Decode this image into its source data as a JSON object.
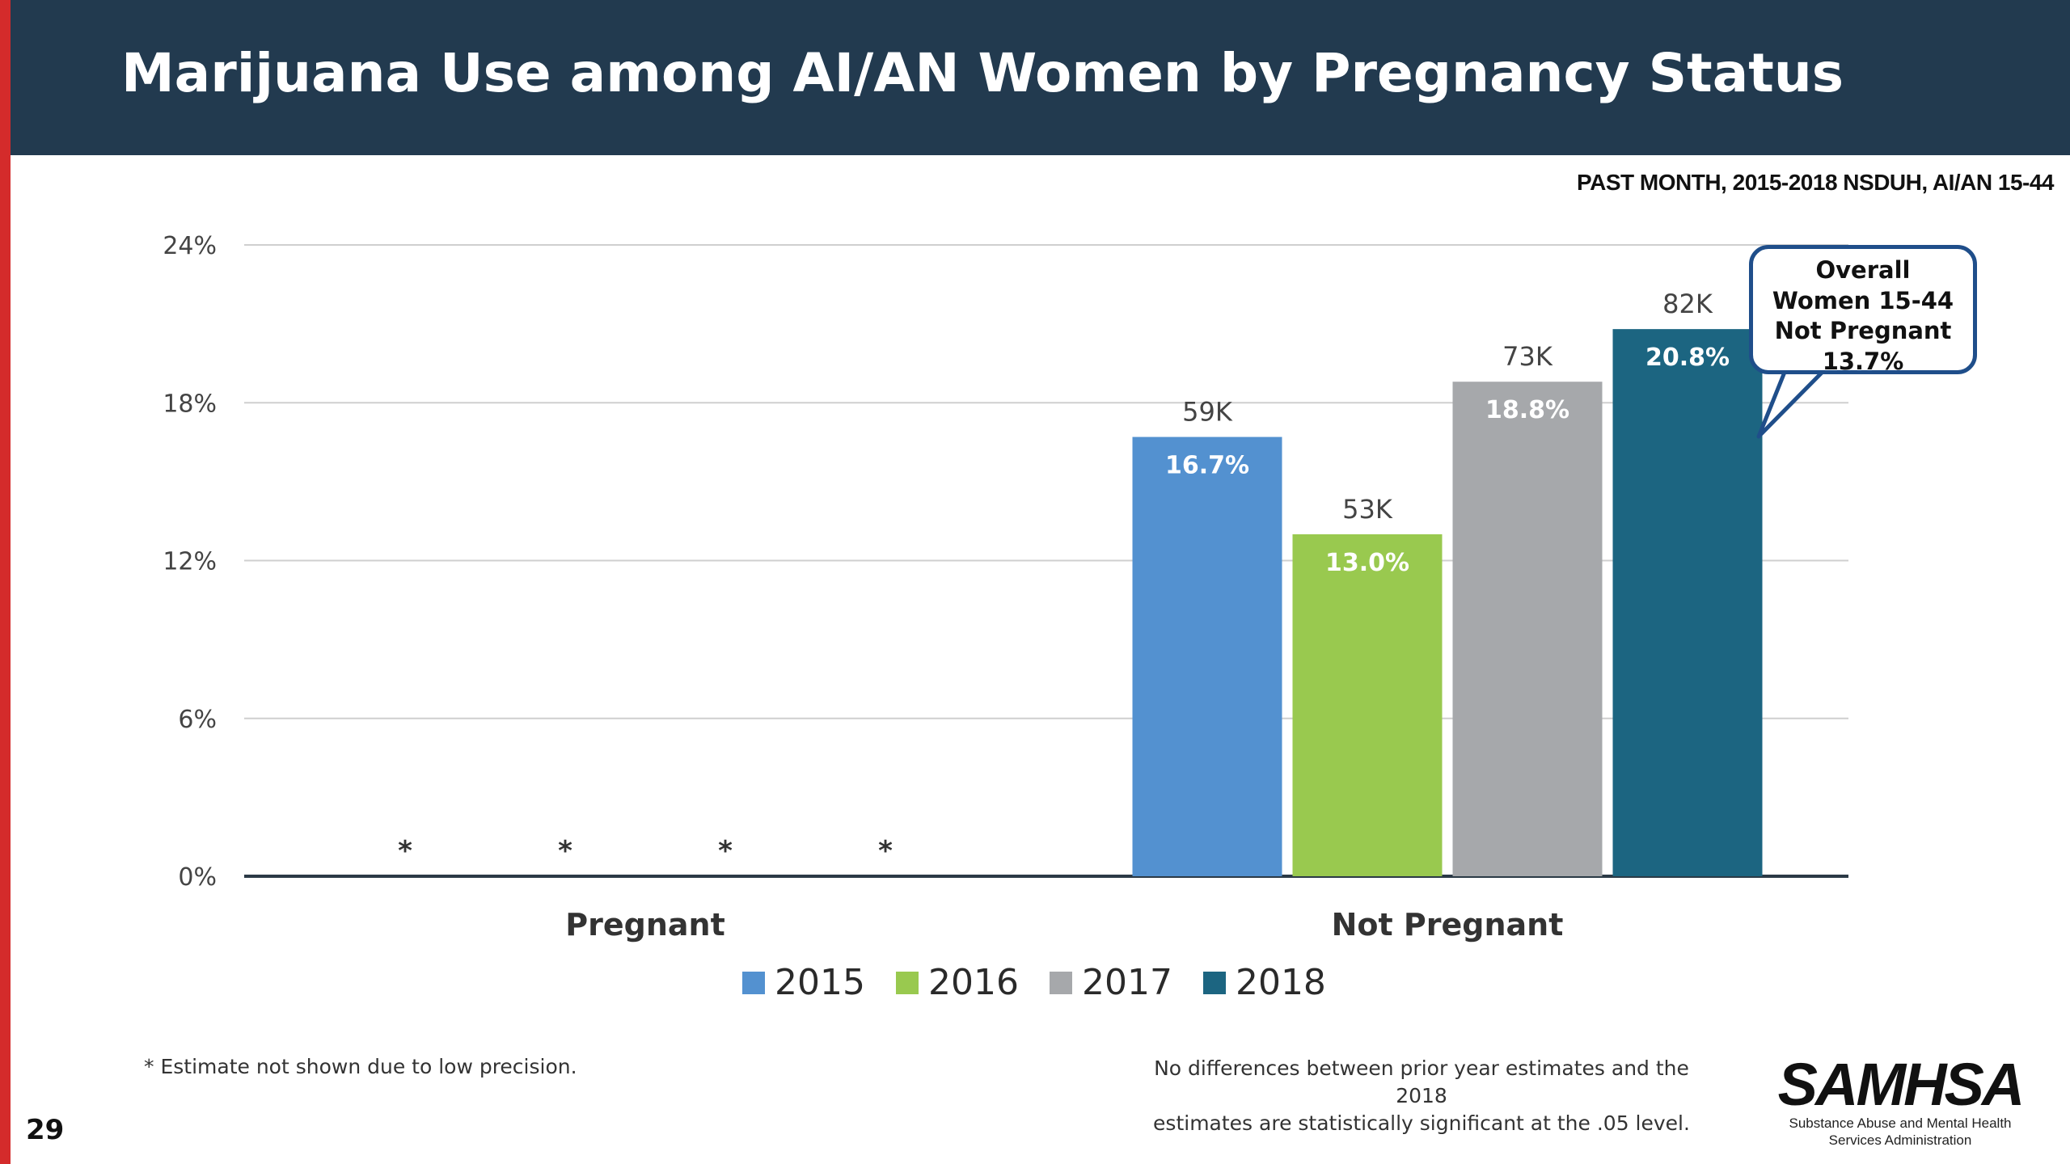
{
  "slide": {
    "title": "Marijuana Use among AI/AN Women by Pregnancy Status",
    "subtitle": "PAST MONTH, 2015-2018 NSDUH, AI/AN 15-44",
    "page_number": "29",
    "footnote_left": "* Estimate not shown due to low precision.",
    "footnote_right_line1": "No differences between prior year estimates and the 2018",
    "footnote_right_line2": "estimates are statistically significant at the .05 level.",
    "logo_text": "SAMHSA",
    "logo_subtitle_line1": "Substance Abuse and Mental Health",
    "logo_subtitle_line2": "Services Administration",
    "callout_lines": [
      "Overall",
      "Women 15-44",
      "Not Pregnant",
      "13.7%"
    ],
    "accent_color": "#d42b2b",
    "header_color": "#223a4f"
  },
  "chart_data": {
    "type": "bar",
    "categories": [
      "Pregnant",
      "Not Pregnant"
    ],
    "ylim": [
      0,
      24
    ],
    "y_ticks": [
      0,
      6,
      12,
      18,
      24
    ],
    "y_tick_labels": [
      "0%",
      "6%",
      "12%",
      "18%",
      "24%"
    ],
    "grid": true,
    "legend_position": "bottom",
    "suppressed_marker": "*",
    "series": [
      {
        "name": "2015",
        "color": "#5391d0",
        "values": [
          null,
          16.7
        ],
        "value_labels": [
          "*",
          "16.7%"
        ],
        "count_labels": [
          "",
          "59K"
        ]
      },
      {
        "name": "2016",
        "color": "#99c94f",
        "values": [
          null,
          13.0
        ],
        "value_labels": [
          "*",
          "13.0%"
        ],
        "count_labels": [
          "",
          "53K"
        ]
      },
      {
        "name": "2017",
        "color": "#a6a8ab",
        "values": [
          null,
          18.8
        ],
        "value_labels": [
          "*",
          "18.8%"
        ],
        "count_labels": [
          "",
          "73K"
        ]
      },
      {
        "name": "2018",
        "color": "#1c6581",
        "values": [
          null,
          20.8
        ],
        "value_labels": [
          "*",
          "20.8%"
        ],
        "count_labels": [
          "",
          "82K"
        ]
      }
    ]
  }
}
